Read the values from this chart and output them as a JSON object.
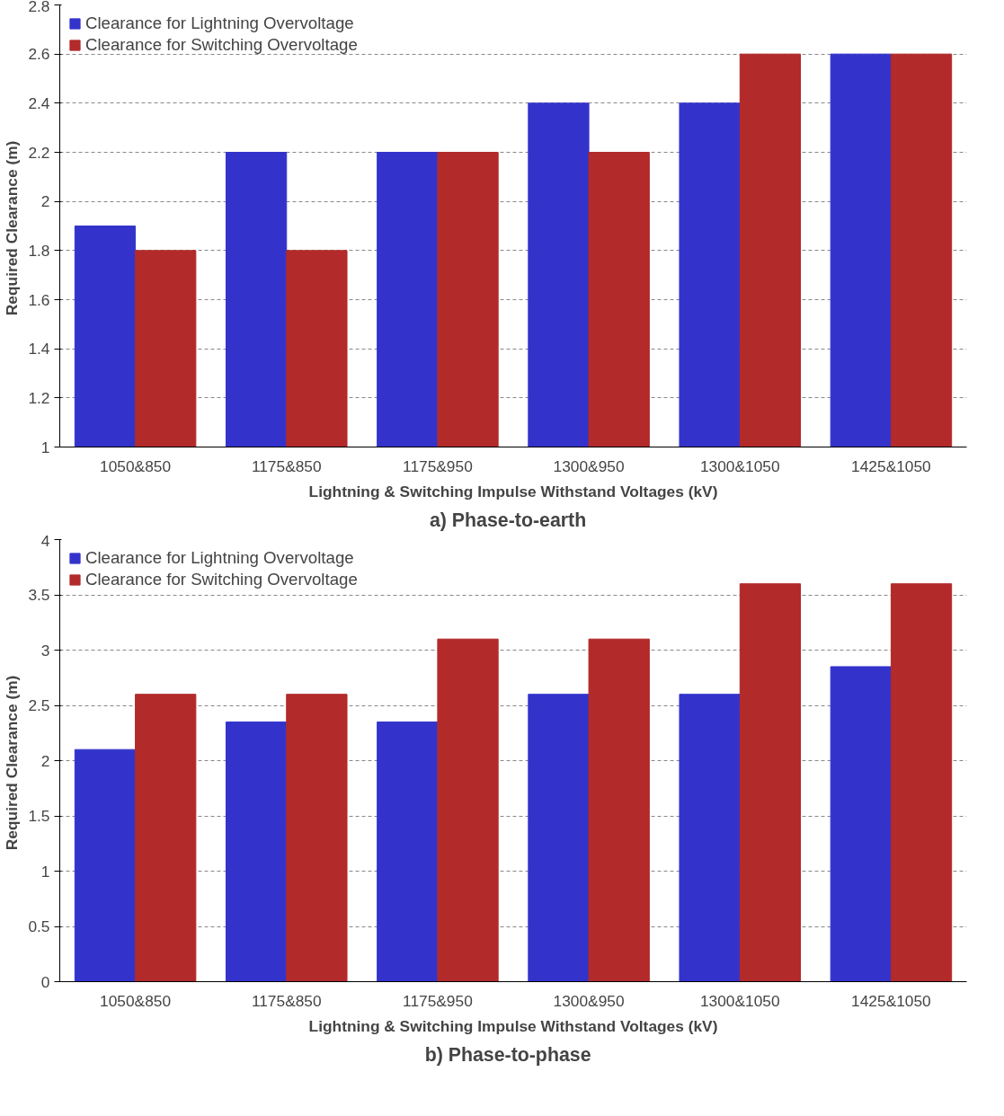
{
  "chart_data": [
    {
      "type": "bar",
      "title": "a)   Phase-to-earth",
      "xlabel": "Lightning & Switching Impulse Withstand Voltages (kV)",
      "ylabel": "Required Clearance  (m)",
      "categories": [
        "1050&850",
        "1175&850",
        "1175&950",
        "1300&950",
        "1300&1050",
        "1425&1050"
      ],
      "series": [
        {
          "name": "Clearance for Lightning Overvoltage",
          "color": "#3333cc",
          "values": [
            1.9,
            2.2,
            2.2,
            2.4,
            2.4,
            2.6
          ]
        },
        {
          "name": "Clearance for Switching Overvoltage",
          "color": "#b22a2a",
          "values": [
            1.8,
            1.8,
            2.2,
            2.2,
            2.6,
            2.6
          ]
        }
      ],
      "ylim": [
        1,
        2.8
      ],
      "yticks": [
        1,
        1.2,
        1.4,
        1.6,
        1.8,
        2,
        2.2,
        2.4,
        2.6,
        2.8
      ],
      "grid": "y",
      "legend": "top left"
    },
    {
      "type": "bar",
      "title": "b)   Phase-to-phase",
      "xlabel": "Lightning & Switching Impulse Withstand Voltages (kV)",
      "ylabel": "Required Clearance  (m)",
      "categories": [
        "1050&850",
        "1175&850",
        "1175&950",
        "1300&950",
        "1300&1050",
        "1425&1050"
      ],
      "series": [
        {
          "name": "Clearance for Lightning Overvoltage",
          "color": "#3333cc",
          "values": [
            2.1,
            2.35,
            2.35,
            2.6,
            2.6,
            2.85
          ]
        },
        {
          "name": "Clearance for Switching Overvoltage",
          "color": "#b22a2a",
          "values": [
            2.6,
            2.6,
            3.1,
            3.1,
            3.6,
            3.6
          ]
        }
      ],
      "ylim": [
        0,
        4
      ],
      "yticks": [
        0,
        0.5,
        1,
        1.5,
        2,
        2.5,
        3,
        3.5,
        4
      ],
      "grid": "y",
      "legend": "top left"
    }
  ]
}
